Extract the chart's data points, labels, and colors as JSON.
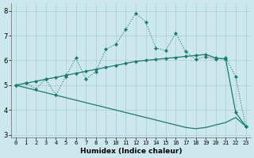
{
  "xlabel": "Humidex (Indice chaleur)",
  "background_color": "#cce8ee",
  "grid_color": "#aacccc",
  "line_color": "#1a7a6e",
  "x_values": [
    0,
    1,
    2,
    3,
    4,
    5,
    6,
    7,
    8,
    9,
    10,
    11,
    12,
    13,
    14,
    15,
    16,
    17,
    18,
    19,
    20,
    21,
    22,
    23
  ],
  "y_zigzag": [
    5.0,
    5.1,
    4.85,
    5.25,
    4.6,
    5.35,
    6.1,
    5.25,
    5.55,
    6.45,
    6.65,
    7.25,
    7.9,
    7.55,
    6.5,
    6.4,
    7.1,
    6.35,
    6.05,
    6.15,
    6.05,
    6.1,
    5.35,
    3.35
  ],
  "y_up": [
    5.0,
    5.08,
    5.16,
    5.24,
    5.32,
    5.4,
    5.48,
    5.56,
    5.64,
    5.72,
    5.8,
    5.88,
    5.96,
    6.0,
    6.04,
    6.08,
    6.12,
    6.16,
    6.2,
    6.24,
    6.1,
    6.05,
    3.9,
    3.35
  ],
  "y_down": [
    5.0,
    4.9,
    4.8,
    4.7,
    4.6,
    4.5,
    4.4,
    4.3,
    4.2,
    4.1,
    4.0,
    3.9,
    3.8,
    3.7,
    3.6,
    3.5,
    3.4,
    3.3,
    3.25,
    3.3,
    3.4,
    3.5,
    3.7,
    3.35
  ],
  "ylim": [
    2.9,
    8.3
  ],
  "xlim": [
    -0.5,
    23.5
  ],
  "yticks": [
    3,
    4,
    5,
    6,
    7,
    8
  ],
  "xticks": [
    0,
    1,
    2,
    3,
    4,
    5,
    6,
    7,
    8,
    9,
    10,
    11,
    12,
    13,
    14,
    15,
    16,
    17,
    18,
    19,
    20,
    21,
    22,
    23
  ],
  "fig_width": 3.2,
  "fig_height": 2.0,
  "dpi": 100
}
